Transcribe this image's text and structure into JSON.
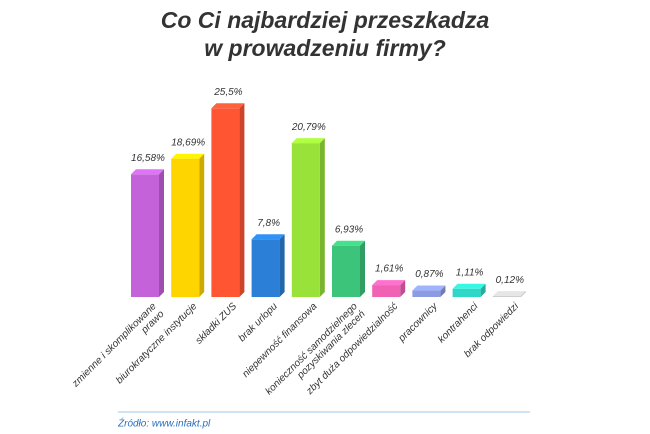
{
  "chart_data": {
    "type": "bar3d",
    "title": [
      "Co Ci najbardziej przeszkadza",
      "w prowadzeniu firmy?"
    ],
    "categories": [
      "zmienne i skomplikowane\nprawo",
      "biurokratyczne instytucje",
      "składki ZUS",
      "brak urlopu",
      "niepewność finansowa",
      "konieczność samodzielnego\npozyskiwania zleceń",
      "zbyt duża odpowiedzialność",
      "pracownicy",
      "kontrahenci",
      "brak odpowiedzi"
    ],
    "values": [
      16.58,
      18.69,
      25.5,
      7.8,
      20.79,
      6.93,
      1.61,
      0.87,
      1.11,
      0.12
    ],
    "value_labels": [
      "16,58%",
      "18,69%",
      "25,5%",
      "7,8%",
      "20,79%",
      "6,93%",
      "1,61%",
      "0,87%",
      "1,11%",
      "0,12%"
    ],
    "colors": [
      "#c463d9",
      "#ffd500",
      "#ff5533",
      "#2b7fd6",
      "#99e23a",
      "#3cc47a",
      "#f062b4",
      "#8c9ce2",
      "#2fd8c6",
      "#c8c8c8"
    ],
    "source": "Źródło: www.infakt.pl"
  }
}
